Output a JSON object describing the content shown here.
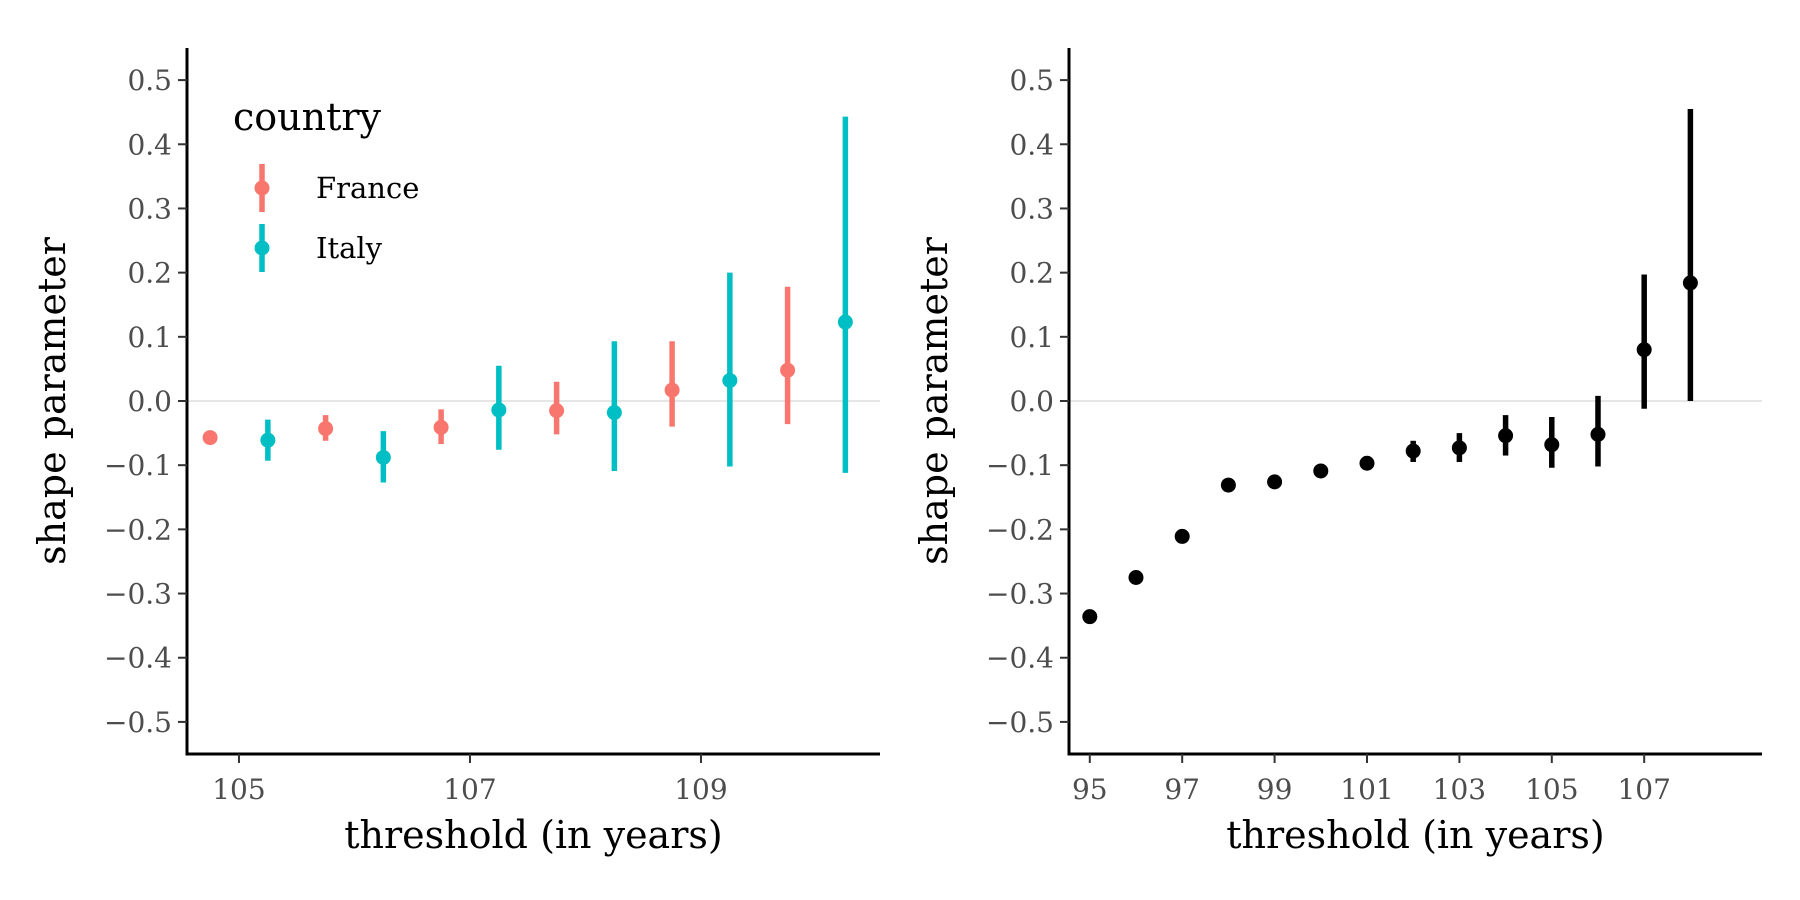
{
  "chart_data": [
    {
      "type": "scatter",
      "subtype": "pointrange",
      "xlabel": "threshold (in years)",
      "ylabel": "shape parameter",
      "xlim": [
        104.55,
        110.55
      ],
      "ylim": [
        -0.55,
        0.55
      ],
      "xticks": [
        105,
        107,
        109
      ],
      "yticks": [
        0.5,
        0.4,
        0.3,
        0.2,
        0.1,
        0.0,
        -0.1,
        -0.2,
        -0.3,
        -0.4,
        -0.5
      ],
      "ytick_labels": [
        "0.5",
        "0.4",
        "0.3",
        "0.2",
        "0.1",
        "0.0",
        "−0.1",
        "−0.2",
        "−0.3",
        "−0.4",
        "−0.5"
      ],
      "reference_line_y": 0,
      "grid": false,
      "legend": {
        "title": "country",
        "placement": "top-left",
        "entries": [
          "France",
          "Italy"
        ]
      },
      "series": [
        {
          "name": "France",
          "color": "#F8766D",
          "points": [
            {
              "x": 105,
              "y": -0.057,
              "lo": -0.057,
              "hi": -0.057
            },
            {
              "x": 106,
              "y": -0.043,
              "lo": -0.062,
              "hi": -0.022
            },
            {
              "x": 107,
              "y": -0.041,
              "lo": -0.067,
              "hi": -0.013
            },
            {
              "x": 108,
              "y": -0.015,
              "lo": -0.052,
              "hi": 0.03
            },
            {
              "x": 109,
              "y": 0.017,
              "lo": -0.04,
              "hi": 0.093
            },
            {
              "x": 110,
              "y": 0.048,
              "lo": -0.036,
              "hi": 0.178
            }
          ]
        },
        {
          "name": "Italy",
          "color": "#00BFC4",
          "points": [
            {
              "x": 105,
              "y": -0.061,
              "lo": -0.093,
              "hi": -0.029
            },
            {
              "x": 106,
              "y": -0.088,
              "lo": -0.127,
              "hi": -0.047
            },
            {
              "x": 107,
              "y": -0.014,
              "lo": -0.076,
              "hi": 0.055
            },
            {
              "x": 108,
              "y": -0.018,
              "lo": -0.109,
              "hi": 0.093
            },
            {
              "x": 109,
              "y": 0.032,
              "lo": -0.102,
              "hi": 0.2
            },
            {
              "x": 110,
              "y": 0.123,
              "lo": -0.112,
              "hi": 0.443
            }
          ]
        }
      ]
    },
    {
      "type": "scatter",
      "subtype": "pointrange",
      "xlabel": "threshold (in years)",
      "ylabel": "shape parameter",
      "xlim": [
        94.55,
        109.55
      ],
      "ylim": [
        -0.55,
        0.55
      ],
      "xticks": [
        95,
        97,
        99,
        101,
        103,
        105,
        107
      ],
      "yticks": [
        0.5,
        0.4,
        0.3,
        0.2,
        0.1,
        0.0,
        -0.1,
        -0.2,
        -0.3,
        -0.4,
        -0.5
      ],
      "ytick_labels": [
        "0.5",
        "0.4",
        "0.3",
        "0.2",
        "0.1",
        "0.0",
        "−0.1",
        "−0.2",
        "−0.3",
        "−0.4",
        "−0.5"
      ],
      "reference_line_y": 0,
      "grid": false,
      "series": [
        {
          "color": "#000000",
          "points": [
            {
              "x": 95,
              "y": -0.336,
              "lo": -0.336,
              "hi": -0.336
            },
            {
              "x": 96,
              "y": -0.275,
              "lo": -0.275,
              "hi": -0.275
            },
            {
              "x": 97,
              "y": -0.211,
              "lo": -0.211,
              "hi": -0.211
            },
            {
              "x": 98,
              "y": -0.131,
              "lo": -0.131,
              "hi": -0.131
            },
            {
              "x": 99,
              "y": -0.126,
              "lo": -0.126,
              "hi": -0.126
            },
            {
              "x": 100,
              "y": -0.109,
              "lo": -0.109,
              "hi": -0.109
            },
            {
              "x": 101,
              "y": -0.097,
              "lo": -0.097,
              "hi": -0.097
            },
            {
              "x": 102,
              "y": -0.078,
              "lo": -0.095,
              "hi": -0.062
            },
            {
              "x": 103,
              "y": -0.073,
              "lo": -0.095,
              "hi": -0.05
            },
            {
              "x": 104,
              "y": -0.054,
              "lo": -0.085,
              "hi": -0.022
            },
            {
              "x": 105,
              "y": -0.068,
              "lo": -0.104,
              "hi": -0.025
            },
            {
              "x": 106,
              "y": -0.052,
              "lo": -0.102,
              "hi": 0.008
            },
            {
              "x": 107,
              "y": 0.08,
              "lo": -0.012,
              "hi": 0.197
            },
            {
              "x": 108,
              "y": 0.184,
              "lo": 0.0,
              "hi": 0.455
            }
          ]
        }
      ]
    }
  ]
}
